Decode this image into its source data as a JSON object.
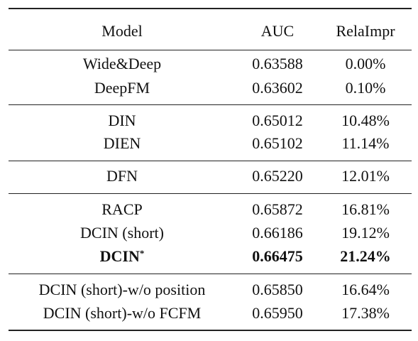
{
  "table": {
    "header": [
      "Model",
      "AUC",
      "RelaImpr"
    ],
    "groups": [
      [
        {
          "cells": [
            "Wide&Deep",
            "0.63588",
            "0.00%"
          ]
        },
        {
          "cells": [
            "DeepFM",
            "0.63602",
            "0.10%"
          ]
        }
      ],
      [
        {
          "cells": [
            "DIN",
            "0.65012",
            "10.48%"
          ]
        },
        {
          "cells": [
            "DIEN",
            "0.65102",
            "11.14%"
          ]
        }
      ],
      [
        {
          "cells": [
            "DFN",
            "0.65220",
            "12.01%"
          ]
        }
      ],
      [
        {
          "cells": [
            "RACP",
            "0.65872",
            "16.81%"
          ]
        },
        {
          "cells": [
            "DCIN (short)",
            "0.66186",
            "19.12%"
          ]
        },
        {
          "cells": [
            "DCIN",
            "0.66475",
            "21.24%"
          ],
          "mark": "*",
          "bold": true
        }
      ],
      [
        {
          "cells": [
            "DCIN (short)-w/o position",
            "0.65850",
            "16.64%"
          ]
        },
        {
          "cells": [
            "DCIN (short)-w/o FCFM",
            "0.65950",
            "17.38%"
          ]
        }
      ]
    ]
  }
}
